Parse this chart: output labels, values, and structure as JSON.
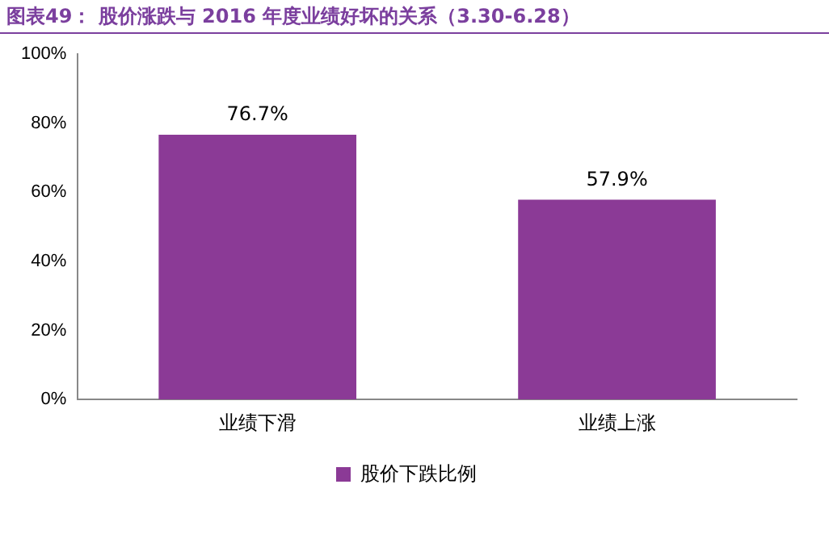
{
  "chart_data": {
    "type": "bar",
    "title": "图表49：  股价涨跌与 2016 年度业绩好坏的关系（3.30-6.28）",
    "categories": [
      "业绩下滑",
      "业绩上涨"
    ],
    "series": [
      {
        "name": "股价下跌比例",
        "color": "#8b3a96",
        "values": [
          76.7,
          57.9
        ],
        "value_labels": [
          "76.7%",
          "57.9%"
        ]
      }
    ],
    "ylim": [
      0,
      100
    ],
    "yticks": [
      {
        "value": 0,
        "label": "0%"
      },
      {
        "value": 20,
        "label": "20%"
      },
      {
        "value": 40,
        "label": "40%"
      },
      {
        "value": 60,
        "label": "60%"
      },
      {
        "value": 80,
        "label": "80%"
      },
      {
        "value": 100,
        "label": "100%"
      }
    ],
    "grid": false,
    "legend": "bottom"
  }
}
